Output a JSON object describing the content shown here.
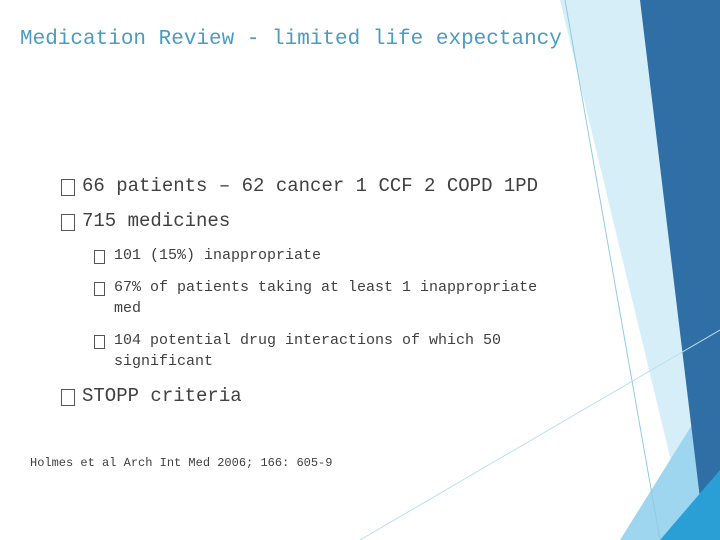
{
  "title": "Medication Review - limited life expectancy",
  "bullets": [
    {
      "text": "66 patients – 62 cancer 1 CCF 2 COPD 1PD"
    },
    {
      "text": "715 medicines",
      "sub": [
        "101 (15%) inappropriate",
        "67% of patients taking at least 1 inappropriate med",
        "104 potential drug interactions of which 50 significant"
      ]
    },
    {
      "text": "STOPP criteria"
    }
  ],
  "footnote": "Holmes et al Arch Int Med 2006; 166: 605-9"
}
